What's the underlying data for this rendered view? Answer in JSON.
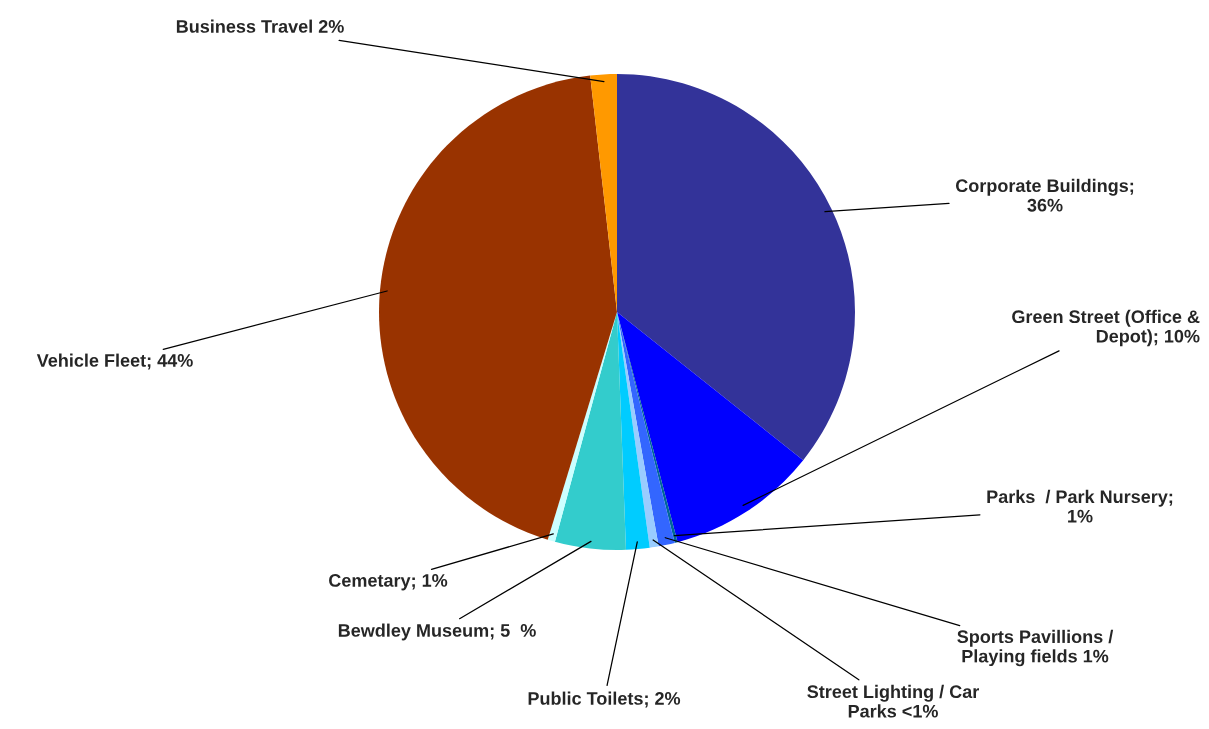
{
  "chart_data": {
    "type": "pie",
    "categories": [
      "Corporate Buildings;\n36%",
      "Green Street (Office &\nDepot); 10%",
      "Parks  / Park Nursery;\n1%",
      "Sports Pavillions /\nPlaying fields 1%",
      "Street Lighting / Car\nParks <1%",
      "Public Toilets; 2%",
      "Bewdley Museum; 5  %",
      "Cemetary; 1%",
      "Vehicle Fleet; 44%",
      "Business Travel 2%"
    ],
    "values": [
      35.7,
      10.2,
      0.2,
      1.1,
      0.6,
      1.6,
      4.8,
      0.5,
      43.5,
      1.8
    ],
    "colors": [
      "#333399",
      "#0000ff",
      "#006699",
      "#3366ff",
      "#99ccff",
      "#00ccff",
      "#33cccc",
      "#ccffff",
      "#993300",
      "#ff9900"
    ]
  }
}
